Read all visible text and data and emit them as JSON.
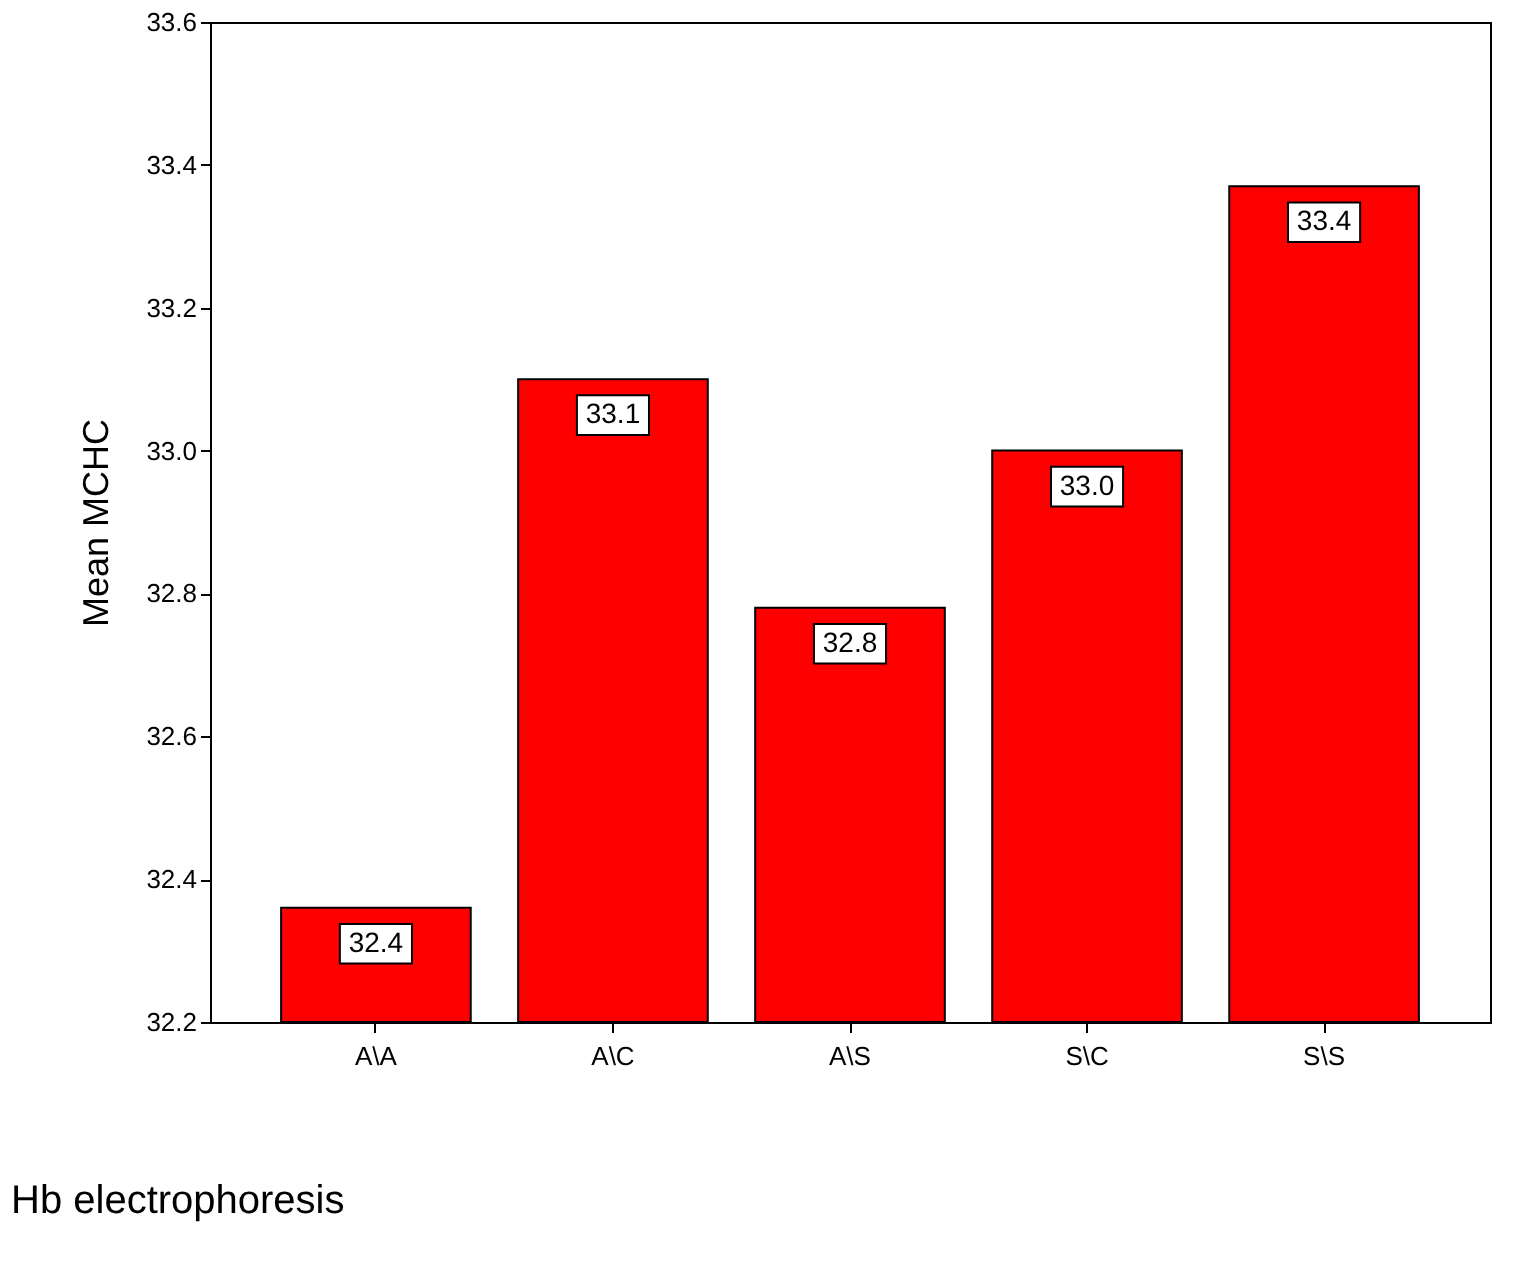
{
  "chart_data": {
    "type": "bar",
    "xlabel": "Hb electrophoresis",
    "ylabel": "Mean MCHC",
    "categories": [
      "A\\A",
      "A\\C",
      "A\\S",
      "S\\C",
      "S\\S"
    ],
    "values": [
      32.36,
      33.1,
      32.78,
      33.0,
      33.37
    ],
    "value_labels": [
      "32.4",
      "33.1",
      "32.8",
      "33.0",
      "33.4"
    ],
    "color": "#ff0000",
    "ylim": [
      32.2,
      33.6
    ],
    "yticks": [
      32.2,
      32.4,
      32.6,
      32.8,
      {
        "value": 33,
        "label": "33.0"
      },
      33.2,
      33.4,
      33.6
    ],
    "grid": false
  }
}
